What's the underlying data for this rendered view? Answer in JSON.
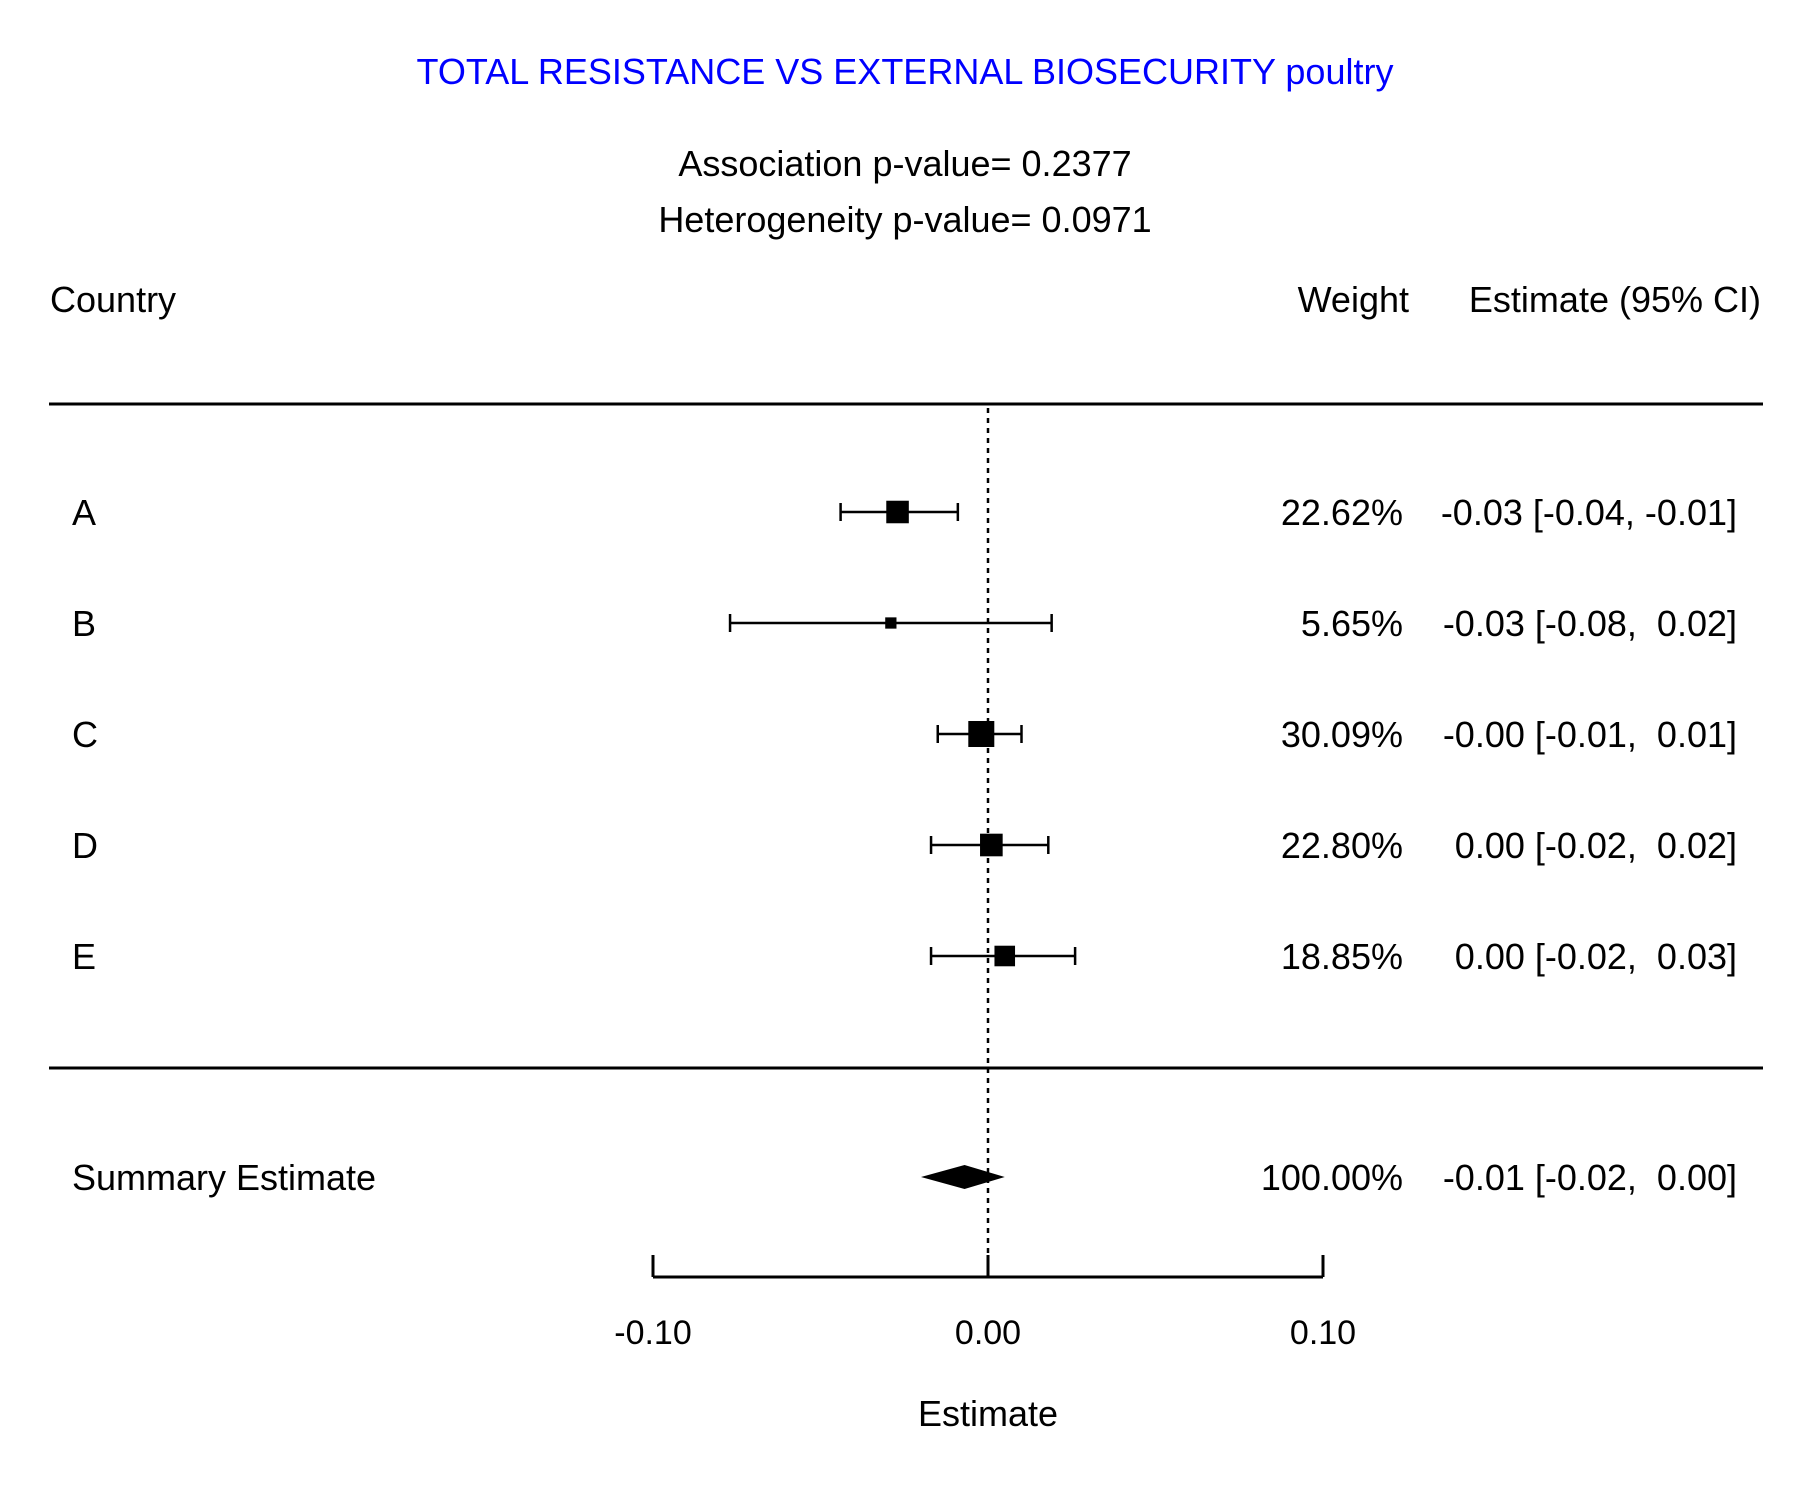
{
  "chart_data": {
    "type": "forest",
    "title": "TOTAL RESISTANCE VS EXTERNAL BIOSECURITY poultry",
    "association_label": "Association p-value= 0.2377",
    "heterogeneity_label": "Heterogeneity p-value= 0.0971",
    "columns": {
      "label": "Country",
      "weight": "Weight",
      "estimate": "Estimate (95% CI)"
    },
    "studies": [
      {
        "name": "A",
        "estimate": -0.027,
        "lower": -0.044,
        "upper": -0.009,
        "weight": 22.62,
        "weight_text": "22.62%",
        "ci_text": "-0.03 [-0.04, -0.01]"
      },
      {
        "name": "B",
        "estimate": -0.029,
        "lower": -0.077,
        "upper": 0.019,
        "weight": 5.65,
        "weight_text": "5.65%",
        "ci_text": "-0.03 [-0.08,  0.02]"
      },
      {
        "name": "C",
        "estimate": -0.002,
        "lower": -0.015,
        "upper": 0.01,
        "weight": 30.09,
        "weight_text": "30.09%",
        "ci_text": "-0.00 [-0.01,  0.01]"
      },
      {
        "name": "D",
        "estimate": 0.001,
        "lower": -0.017,
        "upper": 0.018,
        "weight": 22.8,
        "weight_text": "22.80%",
        "ci_text": " 0.00 [-0.02,  0.02]"
      },
      {
        "name": "E",
        "estimate": 0.005,
        "lower": -0.017,
        "upper": 0.026,
        "weight": 18.85,
        "weight_text": "18.85%",
        "ci_text": " 0.00 [-0.02,  0.03]"
      }
    ],
    "summary": {
      "name": "Summary Estimate",
      "estimate": -0.007,
      "lower": -0.02,
      "upper": 0.005,
      "weight_text": "100.00%",
      "ci_text": "-0.01 [-0.02,  0.00]"
    },
    "xlim": [
      -0.1,
      0.1
    ],
    "x_ticks": [
      -0.1,
      0.0,
      0.1
    ],
    "x_tick_labels": [
      "-0.10",
      "0.00",
      "0.10"
    ],
    "xlabel": "Estimate",
    "reference_line": 0.0
  }
}
